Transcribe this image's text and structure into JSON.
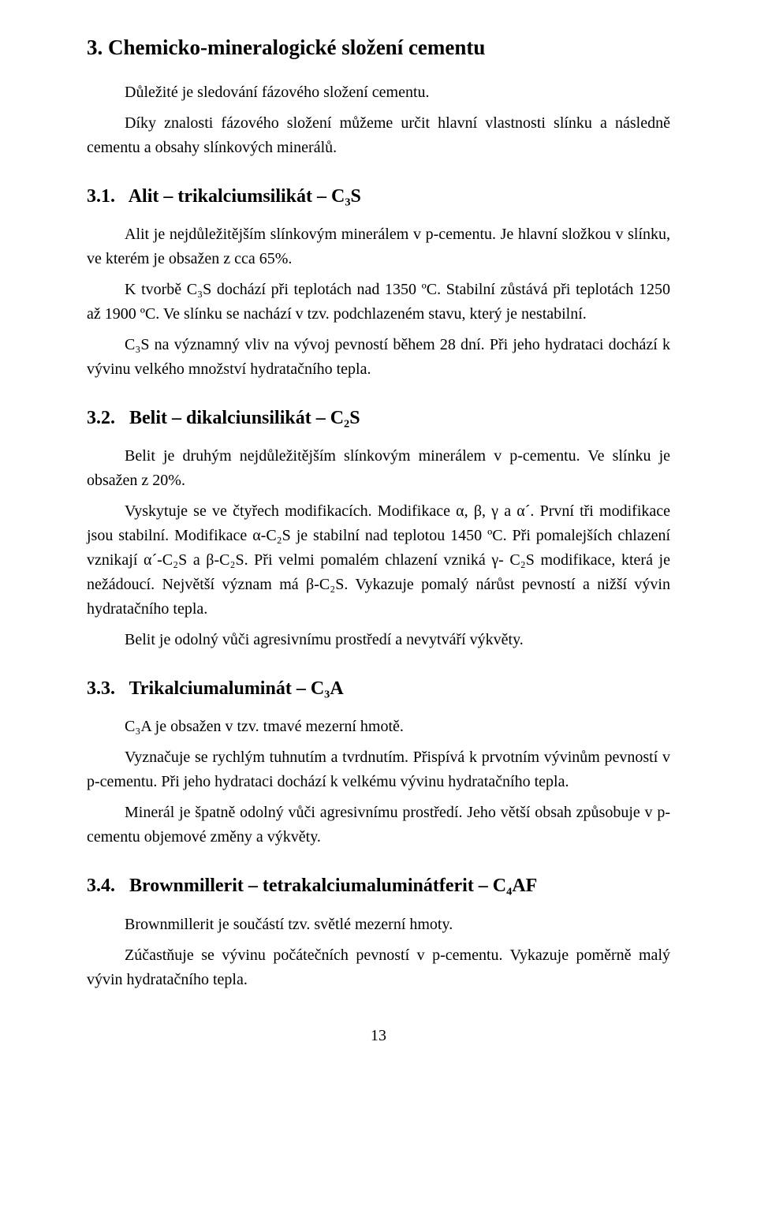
{
  "page": {
    "number": "13"
  },
  "heading_main": "3. Chemicko-mineralogické složení cementu",
  "intro": {
    "p1": "Důležité je sledování fázového složení cementu.",
    "p2": "Díky znalosti fázového složení můžeme určit hlavní vlastnosti slínku a následně cementu a obsahy slínkových minerálů."
  },
  "s31": {
    "num": "3.1.",
    "title": "Alit – trikalciumsilikát – C₃S",
    "p1": "Alit je nejdůležitějším slínkovým minerálem v p-cementu. Je hlavní složkou v slínku, ve kterém je obsažen z cca 65%.",
    "p2": "K tvorbě C₃S dochází při teplotách nad 1350 ºC. Stabilní zůstává při teplotách 1250 až 1900 ºC. Ve slínku se nachází v tzv. podchlazeném stavu, který je nestabilní.",
    "p3": "C₃S na významný vliv na vývoj pevností během 28 dní. Při jeho hydrataci dochází k vývinu velkého množství hydratačního tepla."
  },
  "s32": {
    "num": "3.2.",
    "title": "Belit – dikalciunsilikát – C₂S",
    "p1": "Belit je druhým nejdůležitějším slínkovým minerálem v p-cementu. Ve slínku je obsažen z 20%.",
    "p2": "Vyskytuje se ve čtyřech modifikacích. Modifikace α, β, γ a α´. První tři modifikace jsou stabilní. Modifikace α-C₂S je stabilní nad teplotou 1450 ºC. Při pomalejších chlazení vznikají  α´-C₂S a β-C₂S. Při velmi pomalém chlazení vzniká γ- C₂S modifikace, která je nežádoucí. Největší význam má β-C₂S. Vykazuje pomalý nárůst pevností a nižší vývin hydratačního tepla.",
    "p3": "Belit je odolný vůči agresivnímu prostředí a nevytváří výkvěty."
  },
  "s33": {
    "num": "3.3.",
    "title": "Trikalciumaluminát – C₃A",
    "p1": "C₃A je obsažen v tzv. tmavé mezerní hmotě.",
    "p2": "Vyznačuje se rychlým tuhnutím a tvrdnutím. Přispívá k prvotním vývinům pevností v p-cementu. Při jeho hydrataci dochází k velkému vývinu hydratačního tepla.",
    "p3": "Minerál je špatně odolný vůči agresivnímu prostředí. Jeho větší obsah způsobuje v p-cementu objemové změny a výkvěty."
  },
  "s34": {
    "num": "3.4.",
    "title": "Brownmillerit – tetrakalciumaluminátferit – C₄AF",
    "p1": "Brownmillerit je součástí tzv. světlé mezerní hmoty.",
    "p2": "Zúčastňuje se vývinu počátečních pevností v p-cementu. Vykazuje poměrně malý vývin hydratačního tepla."
  }
}
